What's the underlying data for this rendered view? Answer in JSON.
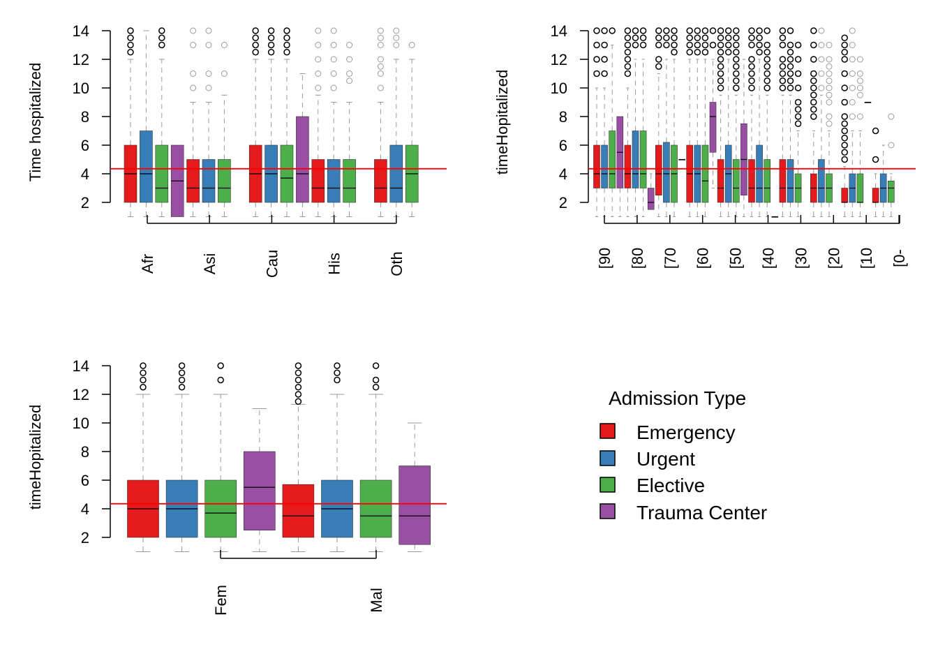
{
  "colors": {
    "Emergency": "#E41A1C",
    "Urgent": "#377EB8",
    "Elective": "#4DAF4A",
    "Trauma Center": "#984EA3",
    "ref_line": "#FF0000",
    "whisker": "#999999",
    "outlier_dark": "#000000",
    "outlier_light": "#999999"
  },
  "legend": {
    "title": "Admission Type",
    "items": [
      "Emergency",
      "Urgent",
      "Elective",
      "Trauma Center"
    ]
  },
  "chart_data": [
    {
      "id": "race",
      "type": "box",
      "title": "",
      "ylabel": "Time hospitalized",
      "xlabel": "",
      "ylim": [
        1,
        14
      ],
      "yticks": [
        2,
        4,
        6,
        8,
        10,
        12,
        14
      ],
      "ref_line": 4.35,
      "groups": [
        "Afr",
        "Asi",
        "Cau",
        "His",
        "Oth"
      ],
      "boxes": [
        {
          "group": "Afr",
          "type": "Emergency",
          "q1": 2,
          "med": 4,
          "q3": 6,
          "lo": 1,
          "hi": 12,
          "out": [
            12.5,
            13,
            13.5,
            14
          ],
          "faint": false
        },
        {
          "group": "Afr",
          "type": "Urgent",
          "q1": 2,
          "med": 4,
          "q3": 7,
          "lo": 1,
          "hi": 14,
          "out": [],
          "faint": false
        },
        {
          "group": "Afr",
          "type": "Elective",
          "q1": 2,
          "med": 3,
          "q3": 6,
          "lo": 1,
          "hi": 12,
          "out": [
            13,
            13.5,
            14
          ],
          "faint": false
        },
        {
          "group": "Afr",
          "type": "Trauma Center",
          "q1": 1,
          "med": 3.5,
          "q3": 6,
          "lo": 1,
          "hi": 6,
          "out": [],
          "faint": false
        },
        {
          "group": "Asi",
          "type": "Emergency",
          "q1": 2,
          "med": 3,
          "q3": 5,
          "lo": 1,
          "hi": 9,
          "out": [
            10,
            11,
            13,
            14
          ],
          "faint": true
        },
        {
          "group": "Asi",
          "type": "Urgent",
          "q1": 2,
          "med": 3,
          "q3": 5,
          "lo": 1,
          "hi": 9,
          "out": [
            10,
            11,
            13,
            14
          ],
          "faint": true
        },
        {
          "group": "Asi",
          "type": "Elective",
          "q1": 2,
          "med": 3,
          "q3": 5,
          "lo": 1,
          "hi": 9.5,
          "out": [
            11,
            13
          ],
          "faint": true
        },
        {
          "group": "Cau",
          "type": "Emergency",
          "q1": 2,
          "med": 4,
          "q3": 6,
          "lo": 1,
          "hi": 12,
          "out": [
            12.5,
            13,
            13.5,
            14
          ],
          "faint": false
        },
        {
          "group": "Cau",
          "type": "Urgent",
          "q1": 2,
          "med": 4,
          "q3": 6,
          "lo": 1,
          "hi": 12,
          "out": [
            12.5,
            13,
            13.5,
            14
          ],
          "faint": false
        },
        {
          "group": "Cau",
          "type": "Elective",
          "q1": 2,
          "med": 3.7,
          "q3": 6,
          "lo": 1,
          "hi": 12,
          "out": [
            12.5,
            13,
            13.5,
            14
          ],
          "faint": false
        },
        {
          "group": "Cau",
          "type": "Trauma Center",
          "q1": 2,
          "med": 4,
          "q3": 8,
          "lo": 1,
          "hi": 11,
          "out": [],
          "faint": false
        },
        {
          "group": "His",
          "type": "Emergency",
          "q1": 2,
          "med": 3,
          "q3": 5,
          "lo": 1,
          "hi": 9.5,
          "out": [
            10,
            11,
            12,
            13,
            14
          ],
          "faint": true
        },
        {
          "group": "His",
          "type": "Urgent",
          "q1": 2,
          "med": 3,
          "q3": 5,
          "lo": 1,
          "hi": 9,
          "out": [
            10,
            11,
            12,
            13,
            14
          ],
          "faint": true
        },
        {
          "group": "His",
          "type": "Elective",
          "q1": 2,
          "med": 3,
          "q3": 5,
          "lo": 1,
          "hi": 9,
          "out": [
            10.5,
            11,
            12,
            13
          ],
          "faint": true
        },
        {
          "group": "Oth",
          "type": "Emergency",
          "q1": 2,
          "med": 3,
          "q3": 5,
          "lo": 1,
          "hi": 9,
          "out": [
            10,
            11,
            11.5,
            12,
            13,
            13.5,
            14
          ],
          "faint": true
        },
        {
          "group": "Oth",
          "type": "Urgent",
          "q1": 2,
          "med": 3,
          "q3": 6,
          "lo": 1,
          "hi": 12,
          "out": [
            13,
            13.5,
            14
          ],
          "faint": true
        },
        {
          "group": "Oth",
          "type": "Elective",
          "q1": 2,
          "med": 4,
          "q3": 6,
          "lo": 1,
          "hi": 12,
          "out": [
            13
          ],
          "faint": true
        }
      ]
    },
    {
      "id": "age",
      "type": "box",
      "title": "",
      "ylabel": "timeHopitalized",
      "xlabel": "",
      "ylim": [
        1,
        14
      ],
      "yticks": [
        2,
        4,
        6,
        8,
        10,
        12,
        14
      ],
      "ref_line": 4.35,
      "groups": [
        "[90",
        "[80",
        "[70",
        "[60",
        "[50",
        "[40",
        "[30",
        "[20",
        "[10",
        "[0-"
      ],
      "boxes": [
        {
          "group": "[90",
          "type": "Emergency",
          "q1": 3,
          "med": 4,
          "q3": 6,
          "lo": 1,
          "hi": 10,
          "out": [
            11,
            12,
            13,
            14
          ],
          "faint": false
        },
        {
          "group": "[90",
          "type": "Urgent",
          "q1": 3,
          "med": 4,
          "q3": 6,
          "lo": 1,
          "hi": 10,
          "out": [
            11,
            12,
            13,
            14
          ],
          "faint": false
        },
        {
          "group": "[90",
          "type": "Elective",
          "q1": 3,
          "med": 4,
          "q3": 7,
          "lo": 1,
          "hi": 13,
          "out": [
            14
          ],
          "faint": false
        },
        {
          "group": "[90",
          "type": "Trauma Center",
          "q1": 3,
          "med": 5.5,
          "q3": 8,
          "lo": 1,
          "hi": 8,
          "out": [],
          "faint": false
        },
        {
          "group": "[80",
          "type": "Emergency",
          "q1": 3,
          "med": 4,
          "q3": 6,
          "lo": 1,
          "hi": 10,
          "out": [
            11,
            11.5,
            12,
            12.5,
            13,
            13.5,
            14
          ],
          "faint": false
        },
        {
          "group": "[80",
          "type": "Urgent",
          "q1": 3,
          "med": 4,
          "q3": 7,
          "lo": 1,
          "hi": 12,
          "out": [
            13,
            13.5,
            14
          ],
          "faint": false
        },
        {
          "group": "[80",
          "type": "Elective",
          "q1": 3,
          "med": 4,
          "q3": 7,
          "lo": 1,
          "hi": 12,
          "out": [
            13,
            13.5,
            14
          ],
          "faint": false
        },
        {
          "group": "[80",
          "type": "Trauma Center",
          "q1": 1.5,
          "med": 2,
          "q3": 3,
          "lo": 1.5,
          "hi": 4,
          "out": [],
          "faint": false
        },
        {
          "group": "[70",
          "type": "Emergency",
          "q1": 2.5,
          "med": 4,
          "q3": 6,
          "lo": 1,
          "hi": 11,
          "out": [
            11.5,
            12,
            13,
            13.5,
            14
          ],
          "faint": false
        },
        {
          "group": "[70",
          "type": "Urgent",
          "q1": 2,
          "med": 4,
          "q3": 6.2,
          "lo": 1,
          "hi": 12,
          "out": [
            13,
            13.5,
            14
          ],
          "faint": false
        },
        {
          "group": "[70",
          "type": "Elective",
          "q1": 2,
          "med": 4,
          "q3": 6,
          "lo": 1,
          "hi": 12,
          "out": [
            12.5,
            13,
            13.5,
            14
          ],
          "faint": false
        },
        {
          "group": "[70",
          "type": "Trauma Center",
          "q1": 5,
          "med": 5,
          "q3": 5,
          "lo": 5,
          "hi": 5,
          "out": [],
          "faint": false
        },
        {
          "group": "[60",
          "type": "Emergency",
          "q1": 2,
          "med": 4,
          "q3": 6,
          "lo": 1,
          "hi": 12,
          "out": [
            12.5,
            13,
            13.5,
            14
          ],
          "faint": false
        },
        {
          "group": "[60",
          "type": "Urgent",
          "q1": 2,
          "med": 4,
          "q3": 6,
          "lo": 1,
          "hi": 12,
          "out": [
            12.5,
            13,
            13.5,
            14
          ],
          "faint": false
        },
        {
          "group": "[60",
          "type": "Elective",
          "q1": 2,
          "med": 3.5,
          "q3": 6,
          "lo": 1,
          "hi": 12,
          "out": [
            12.5,
            13,
            13.5,
            14
          ],
          "faint": false
        },
        {
          "group": "[60",
          "type": "Trauma Center",
          "q1": 5.5,
          "med": 8,
          "q3": 9,
          "lo": 3,
          "hi": 12,
          "out": [
            13,
            14
          ],
          "faint": false
        },
        {
          "group": "[50",
          "type": "Emergency",
          "q1": 2,
          "med": 3,
          "q3": 5,
          "lo": 1,
          "hi": 9.5,
          "out": [
            10,
            10.5,
            11,
            11.5,
            12,
            12.5,
            13,
            13.5,
            14
          ],
          "faint": false
        },
        {
          "group": "[50",
          "type": "Urgent",
          "q1": 2,
          "med": 4,
          "q3": 6,
          "lo": 1,
          "hi": 12,
          "out": [
            12.5,
            13,
            13.5,
            14
          ],
          "faint": false
        },
        {
          "group": "[50",
          "type": "Elective",
          "q1": 2,
          "med": 3,
          "q3": 5,
          "lo": 1,
          "hi": 9.5,
          "out": [
            10,
            10.5,
            11,
            11.5,
            12,
            12.5,
            13,
            13.5,
            14
          ],
          "faint": false
        },
        {
          "group": "[50",
          "type": "Trauma Center",
          "q1": 2.5,
          "med": 5,
          "q3": 7.5,
          "lo": 1,
          "hi": 12,
          "out": [],
          "faint": false
        },
        {
          "group": "[40",
          "type": "Emergency",
          "q1": 2,
          "med": 3,
          "q3": 5,
          "lo": 1,
          "hi": 9.5,
          "out": [
            10,
            10.5,
            11,
            11.5,
            12,
            13,
            13.5,
            14
          ],
          "faint": false
        },
        {
          "group": "[40",
          "type": "Urgent",
          "q1": 2,
          "med": 3,
          "q3": 6,
          "lo": 1,
          "hi": 12,
          "out": [
            12.5,
            13,
            13.5,
            14
          ],
          "faint": false
        },
        {
          "group": "[40",
          "type": "Elective",
          "q1": 2,
          "med": 3,
          "q3": 5,
          "lo": 1,
          "hi": 9.5,
          "out": [
            10,
            10.5,
            11,
            11.5,
            12,
            12.5,
            13,
            14
          ],
          "faint": false
        },
        {
          "group": "[40",
          "type": "Trauma Center",
          "q1": 1,
          "med": 1,
          "q3": 1,
          "lo": 1,
          "hi": 1,
          "out": [],
          "faint": false
        },
        {
          "group": "[30",
          "type": "Emergency",
          "q1": 2,
          "med": 3,
          "q3": 5,
          "lo": 1,
          "hi": 9.5,
          "out": [
            10,
            10.5,
            11,
            11.5,
            12,
            13,
            13.5,
            14
          ],
          "faint": false
        },
        {
          "group": "[30",
          "type": "Urgent",
          "q1": 2,
          "med": 3,
          "q3": 5,
          "lo": 1,
          "hi": 9.5,
          "out": [
            10,
            10.5,
            11,
            11.5,
            12,
            12.5,
            13,
            14
          ],
          "faint": false
        },
        {
          "group": "[30",
          "type": "Elective",
          "q1": 2,
          "med": 3,
          "q3": 4,
          "lo": 1,
          "hi": 7,
          "out": [
            7.5,
            8,
            8.5,
            9,
            10,
            11,
            12,
            13
          ],
          "faint": false
        },
        {
          "group": "[20",
          "type": "Emergency",
          "q1": 2,
          "med": 3,
          "q3": 4,
          "lo": 1,
          "hi": 7,
          "out": [
            8,
            8.5,
            9,
            9.5,
            10,
            10.5,
            11,
            12,
            13,
            14
          ],
          "faint": false
        },
        {
          "group": "[20",
          "type": "Urgent",
          "q1": 2,
          "med": 3,
          "q3": 5,
          "lo": 1,
          "hi": 9.5,
          "out": [
            10,
            11,
            12,
            13,
            14
          ],
          "faint": true
        },
        {
          "group": "[20",
          "type": "Elective",
          "q1": 2,
          "med": 3,
          "q3": 4,
          "lo": 1,
          "hi": 7,
          "out": [
            7.5,
            8,
            9,
            9.5,
            10,
            10.5,
            11,
            11.5,
            12,
            13
          ],
          "faint": true
        },
        {
          "group": "[10",
          "type": "Emergency",
          "q1": 2,
          "med": 2,
          "q3": 3,
          "lo": 1,
          "hi": 4.5,
          "out": [
            5,
            5.5,
            6,
            6.5,
            7,
            7.5,
            8,
            9,
            10,
            11,
            12,
            12.5,
            13,
            13.5
          ],
          "faint": false
        },
        {
          "group": "[10",
          "type": "Urgent",
          "q1": 2,
          "med": 3,
          "q3": 4,
          "lo": 1,
          "hi": 7,
          "out": [
            8,
            9,
            10,
            11,
            12,
            13,
            14
          ],
          "faint": true
        },
        {
          "group": "[10",
          "type": "Elective",
          "q1": 2,
          "med": 2,
          "q3": 4,
          "lo": 1,
          "hi": 7,
          "out": [
            8,
            9.5,
            10,
            10.5,
            11,
            12
          ],
          "faint": true
        },
        {
          "group": "[10",
          "type": "Trauma Center",
          "q1": 9,
          "med": 9,
          "q3": 9,
          "lo": 9,
          "hi": 9,
          "out": [],
          "faint": false
        },
        {
          "group": "[0-",
          "type": "Emergency",
          "q1": 2,
          "med": 2,
          "q3": 3,
          "lo": 1,
          "hi": 4,
          "out": [
            5,
            7
          ],
          "faint": false
        },
        {
          "group": "[0-",
          "type": "Urgent",
          "q1": 2,
          "med": 3,
          "q3": 4,
          "lo": 1,
          "hi": 6,
          "out": [],
          "faint": true
        },
        {
          "group": "[0-",
          "type": "Elective",
          "q1": 2,
          "med": 3,
          "q3": 3.5,
          "lo": 1,
          "hi": 4,
          "out": [
            6,
            8
          ],
          "faint": true
        }
      ]
    },
    {
      "id": "gender",
      "type": "box",
      "title": "",
      "ylabel": "timeHopitalized",
      "xlabel": "",
      "ylim": [
        1,
        14
      ],
      "yticks": [
        2,
        4,
        6,
        8,
        10,
        12,
        14
      ],
      "ref_line": 4.35,
      "groups": [
        "Fem",
        "Mal"
      ],
      "boxes": [
        {
          "group": "Fem",
          "type": "Emergency",
          "q1": 2,
          "med": 4,
          "q3": 6,
          "lo": 1,
          "hi": 12,
          "out": [
            12.5,
            13,
            13.5,
            14
          ],
          "faint": false
        },
        {
          "group": "Fem",
          "type": "Urgent",
          "q1": 2,
          "med": 4,
          "q3": 6,
          "lo": 1,
          "hi": 12,
          "out": [
            12.5,
            13,
            13.5,
            14
          ],
          "faint": false
        },
        {
          "group": "Fem",
          "type": "Elective",
          "q1": 2,
          "med": 3.7,
          "q3": 6,
          "lo": 1,
          "hi": 12,
          "out": [
            13,
            14
          ],
          "faint": false
        },
        {
          "group": "Fem",
          "type": "Trauma Center",
          "q1": 2.5,
          "med": 5.5,
          "q3": 8,
          "lo": 1,
          "hi": 11,
          "out": [],
          "faint": false
        },
        {
          "group": "Mal",
          "type": "Emergency",
          "q1": 2,
          "med": 3.5,
          "q3": 5.7,
          "lo": 1,
          "hi": 11.3,
          "out": [
            11.5,
            12,
            12.5,
            13,
            13.5,
            14
          ],
          "faint": false
        },
        {
          "group": "Mal",
          "type": "Urgent",
          "q1": 2,
          "med": 4,
          "q3": 6,
          "lo": 1,
          "hi": 12,
          "out": [
            13,
            13.5,
            14
          ],
          "faint": false
        },
        {
          "group": "Mal",
          "type": "Elective",
          "q1": 2,
          "med": 3.5,
          "q3": 6,
          "lo": 1,
          "hi": 12,
          "out": [
            12.5,
            13,
            14
          ],
          "faint": false
        },
        {
          "group": "Mal",
          "type": "Trauma Center",
          "q1": 1.5,
          "med": 3.5,
          "q3": 7,
          "lo": 1,
          "hi": 10,
          "out": [],
          "faint": false
        }
      ]
    }
  ]
}
